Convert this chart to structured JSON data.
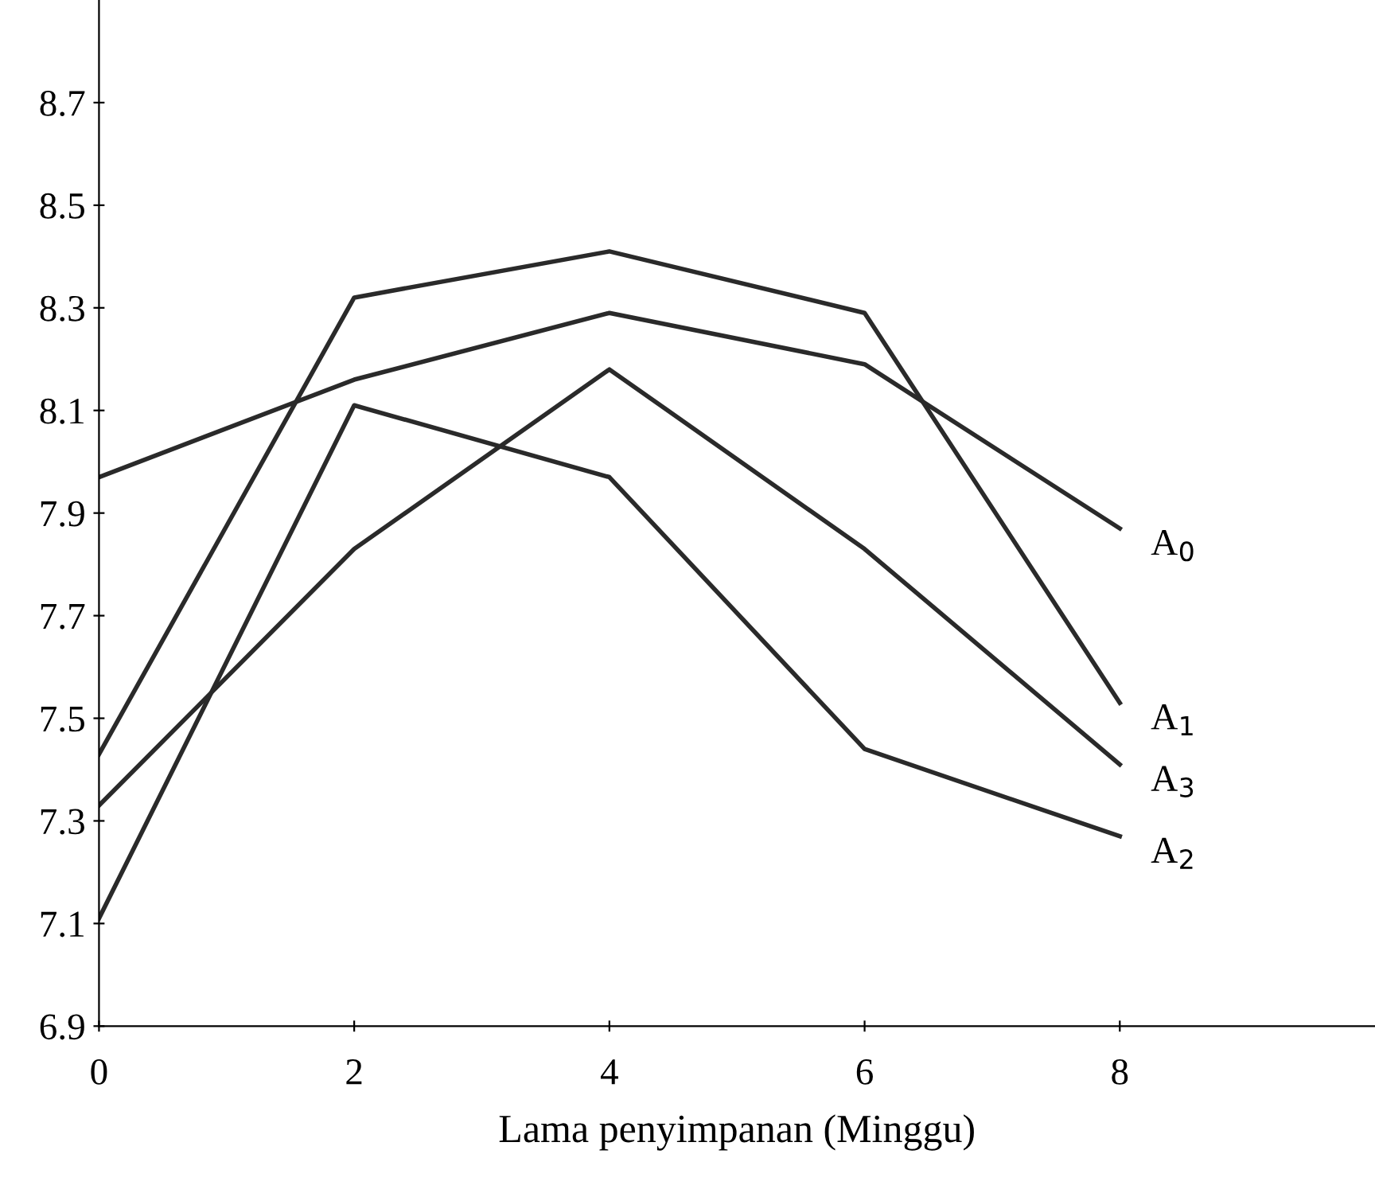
{
  "chart_data": {
    "type": "line",
    "xlabel": "Lama penyimpanan (Minggu)",
    "x": [
      0,
      2,
      4,
      6,
      8
    ],
    "series": [
      {
        "name": "A$_{0}$",
        "color": "#2a2a2a",
        "values": [
          7.97,
          8.16,
          8.29,
          8.19,
          7.87
        ]
      },
      {
        "name": "A$_{1}$",
        "color": "#2a2a2a",
        "values": [
          7.43,
          8.32,
          8.41,
          8.29,
          7.53
        ]
      },
      {
        "name": "A$_{3}$",
        "color": "#2a2a2a",
        "values": [
          7.33,
          7.83,
          8.18,
          7.83,
          7.41
        ]
      },
      {
        "name": "A$_{2}$",
        "color": "#2a2a2a",
        "values": [
          7.11,
          8.11,
          7.97,
          7.44,
          7.27
        ]
      }
    ],
    "xlim": [
      0,
      10
    ],
    "xticks": [
      0,
      2,
      4,
      6,
      8
    ],
    "ylim": [
      6.9,
      8.9
    ],
    "yticks": [
      6.9,
      7.1,
      7.3,
      7.5,
      7.7,
      7.9,
      8.1,
      8.3,
      8.5,
      8.7
    ],
    "grid": false,
    "legend": false,
    "marker": "none",
    "line_style": "solid"
  }
}
